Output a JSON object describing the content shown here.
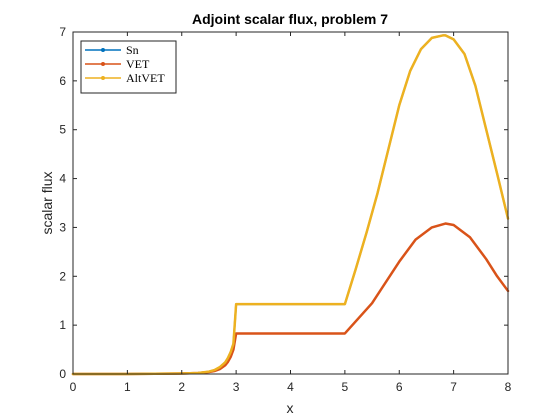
{
  "chart_data": {
    "type": "line",
    "title": "Adjoint scalar flux, problem 7",
    "xlabel": "x",
    "ylabel": "scalar flux",
    "xlim": [
      0,
      8
    ],
    "ylim": [
      0,
      7
    ],
    "xticks": [
      "0",
      "1",
      "2",
      "3",
      "4",
      "5",
      "6",
      "7",
      "8"
    ],
    "yticks": [
      "0",
      "1",
      "2",
      "3",
      "4",
      "5",
      "6",
      "7"
    ],
    "grid": false,
    "legend_placement": "top-left",
    "series": [
      {
        "name": "Sn",
        "color": "#0072BD",
        "x": [
          0,
          1,
          2,
          2.3,
          2.5,
          2.6,
          2.7,
          2.8,
          2.85,
          2.9,
          2.95,
          3.0,
          4,
          5,
          5.2,
          5.4,
          5.6,
          5.8,
          6.0,
          6.2,
          6.4,
          6.6,
          6.8,
          6.85,
          7.0,
          7.2,
          7.4,
          7.6,
          7.8,
          8.0
        ],
        "y": [
          0,
          0,
          0.01,
          0.02,
          0.05,
          0.08,
          0.14,
          0.24,
          0.33,
          0.45,
          0.62,
          1.43,
          1.43,
          1.43,
          2.15,
          2.9,
          3.7,
          4.6,
          5.5,
          6.2,
          6.65,
          6.88,
          6.93,
          6.93,
          6.85,
          6.55,
          5.9,
          5.0,
          4.1,
          3.18
        ]
      },
      {
        "name": "VET",
        "color": "#D95319",
        "x": [
          0,
          1,
          2,
          2.3,
          2.5,
          2.6,
          2.7,
          2.8,
          2.85,
          2.9,
          2.95,
          3.0,
          4,
          5,
          5.5,
          6.0,
          6.3,
          6.6,
          6.85,
          7.0,
          7.3,
          7.6,
          7.8,
          8.0
        ],
        "y": [
          0,
          0,
          0.01,
          0.02,
          0.04,
          0.06,
          0.1,
          0.18,
          0.25,
          0.35,
          0.5,
          0.83,
          0.83,
          0.83,
          1.45,
          2.3,
          2.75,
          3.0,
          3.08,
          3.05,
          2.8,
          2.35,
          2.0,
          1.7
        ]
      },
      {
        "name": "AltVET",
        "color": "#EDB120",
        "x": [
          0,
          1,
          2,
          2.3,
          2.5,
          2.6,
          2.7,
          2.8,
          2.85,
          2.9,
          2.95,
          3.0,
          4,
          5,
          5.2,
          5.4,
          5.6,
          5.8,
          6.0,
          6.2,
          6.4,
          6.6,
          6.8,
          6.85,
          7.0,
          7.2,
          7.4,
          7.6,
          7.8,
          8.0
        ],
        "y": [
          0,
          0,
          0.01,
          0.02,
          0.05,
          0.08,
          0.14,
          0.24,
          0.33,
          0.45,
          0.62,
          1.43,
          1.43,
          1.43,
          2.15,
          2.9,
          3.7,
          4.6,
          5.5,
          6.2,
          6.65,
          6.88,
          6.93,
          6.93,
          6.85,
          6.55,
          5.9,
          5.0,
          4.1,
          3.18
        ]
      }
    ]
  }
}
